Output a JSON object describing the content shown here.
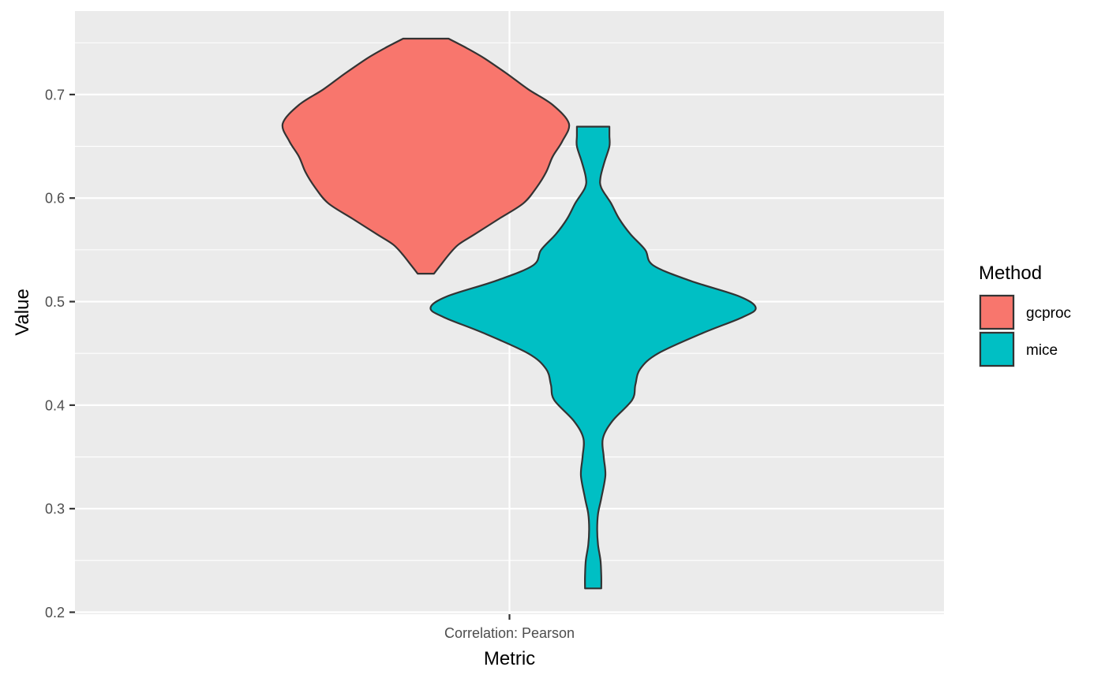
{
  "chart_data": {
    "type": "violin",
    "title": "",
    "xlabel": "Metric",
    "ylabel": "Value",
    "categories": [
      "Correlation: Pearson"
    ],
    "ylim": [
      0.2,
      0.75
    ],
    "yticks": [
      0.2,
      0.3,
      0.4,
      0.5,
      0.6,
      0.7
    ],
    "grid": true,
    "legend": {
      "title": "Method",
      "placement": "right",
      "entries": [
        "gcproc",
        "mice"
      ]
    },
    "series": [
      {
        "name": "gcproc",
        "color": "#F8766D",
        "min": 0.527,
        "max": 0.754,
        "density": [
          [
            0.527,
            0.05
          ],
          [
            0.535,
            0.09
          ],
          [
            0.545,
            0.14
          ],
          [
            0.555,
            0.2
          ],
          [
            0.565,
            0.3
          ],
          [
            0.58,
            0.45
          ],
          [
            0.595,
            0.6
          ],
          [
            0.61,
            0.68
          ],
          [
            0.625,
            0.74
          ],
          [
            0.64,
            0.78
          ],
          [
            0.655,
            0.84
          ],
          [
            0.672,
            0.88
          ],
          [
            0.69,
            0.78
          ],
          [
            0.705,
            0.63
          ],
          [
            0.72,
            0.5
          ],
          [
            0.735,
            0.36
          ],
          [
            0.745,
            0.25
          ],
          [
            0.754,
            0.14
          ]
        ]
      },
      {
        "name": "mice",
        "color": "#00BFC4",
        "min": 0.223,
        "max": 0.669,
        "density": [
          [
            0.223,
            0.05
          ],
          [
            0.235,
            0.05
          ],
          [
            0.25,
            0.045
          ],
          [
            0.265,
            0.03
          ],
          [
            0.28,
            0.025
          ],
          [
            0.295,
            0.03
          ],
          [
            0.31,
            0.05
          ],
          [
            0.332,
            0.075
          ],
          [
            0.35,
            0.065
          ],
          [
            0.368,
            0.06
          ],
          [
            0.385,
            0.12
          ],
          [
            0.405,
            0.24
          ],
          [
            0.42,
            0.26
          ],
          [
            0.435,
            0.29
          ],
          [
            0.45,
            0.4
          ],
          [
            0.47,
            0.68
          ],
          [
            0.485,
            0.92
          ],
          [
            0.494,
            1.0
          ],
          [
            0.505,
            0.9
          ],
          [
            0.52,
            0.6
          ],
          [
            0.535,
            0.37
          ],
          [
            0.55,
            0.32
          ],
          [
            0.565,
            0.23
          ],
          [
            0.58,
            0.16
          ],
          [
            0.595,
            0.11
          ],
          [
            0.61,
            0.05
          ],
          [
            0.62,
            0.045
          ],
          [
            0.635,
            0.07
          ],
          [
            0.65,
            0.1
          ],
          [
            0.66,
            0.1
          ],
          [
            0.669,
            0.1
          ]
        ]
      }
    ]
  }
}
